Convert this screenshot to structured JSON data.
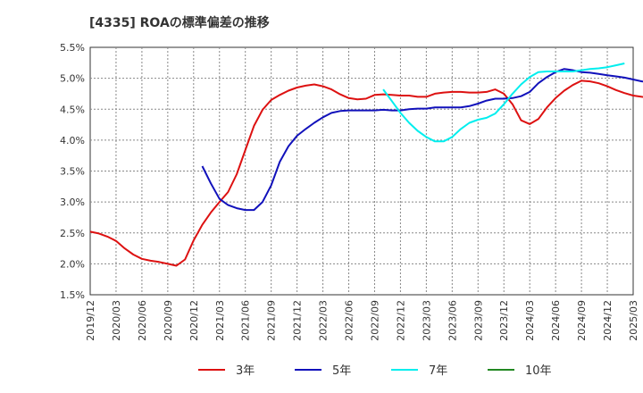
{
  "chart_data": {
    "type": "line",
    "title": "[4335]  ROAの標準偏差の推移",
    "xlabel": "",
    "ylabel": "",
    "ylim": [
      0.015,
      0.055
    ],
    "y_ticks": [
      "1.5%",
      "2.0%",
      "2.5%",
      "3.0%",
      "3.5%",
      "4.0%",
      "4.5%",
      "5.0%",
      "5.5%"
    ],
    "x_ticks": [
      "2019/12",
      "2020/03",
      "2020/06",
      "2020/09",
      "2020/12",
      "2021/03",
      "2021/06",
      "2021/09",
      "2021/12",
      "2022/03",
      "2022/06",
      "2022/09",
      "2022/12",
      "2023/03",
      "2023/06",
      "2023/09",
      "2023/12",
      "2024/03",
      "2024/06",
      "2024/09",
      "2024/12",
      "2025/03"
    ],
    "grid": true,
    "legend_position": "bottom",
    "series": [
      {
        "name": "3年",
        "color": "#dd1111",
        "points": [
          [
            "2019/12",
            0.0252
          ],
          [
            "2020/01",
            0.0249
          ],
          [
            "2020/02",
            0.0244
          ],
          [
            "2020/03",
            0.0237
          ],
          [
            "2020/04",
            0.0225
          ],
          [
            "2020/05",
            0.0215
          ],
          [
            "2020/06",
            0.0208
          ],
          [
            "2020/07",
            0.0205
          ],
          [
            "2020/08",
            0.0203
          ],
          [
            "2020/09",
            0.02
          ],
          [
            "2020/10",
            0.0197
          ],
          [
            "2020/11",
            0.0207
          ],
          [
            "2020/12",
            0.0238
          ],
          [
            "2021/01",
            0.0263
          ],
          [
            "2021/02",
            0.0283
          ],
          [
            "2021/03",
            0.03
          ],
          [
            "2021/04",
            0.0316
          ],
          [
            "2021/05",
            0.0345
          ],
          [
            "2021/06",
            0.0384
          ],
          [
            "2021/07",
            0.0423
          ],
          [
            "2021/08",
            0.0449
          ],
          [
            "2021/09",
            0.0465
          ],
          [
            "2021/10",
            0.0473
          ],
          [
            "2021/11",
            0.048
          ],
          [
            "2021/12",
            0.0485
          ],
          [
            "2022/01",
            0.0488
          ],
          [
            "2022/02",
            0.049
          ],
          [
            "2022/03",
            0.0487
          ],
          [
            "2022/04",
            0.0482
          ],
          [
            "2022/05",
            0.0474
          ],
          [
            "2022/06",
            0.0468
          ],
          [
            "2022/07",
            0.0466
          ],
          [
            "2022/08",
            0.0467
          ],
          [
            "2022/09",
            0.0473
          ],
          [
            "2022/10",
            0.0474
          ],
          [
            "2022/11",
            0.0473
          ],
          [
            "2022/12",
            0.0472
          ],
          [
            "2023/01",
            0.0472
          ],
          [
            "2023/02",
            0.047
          ],
          [
            "2023/03",
            0.047
          ],
          [
            "2023/04",
            0.0475
          ],
          [
            "2023/05",
            0.0477
          ],
          [
            "2023/06",
            0.0478
          ],
          [
            "2023/07",
            0.0478
          ],
          [
            "2023/08",
            0.0477
          ],
          [
            "2023/09",
            0.0477
          ],
          [
            "2023/10",
            0.0478
          ],
          [
            "2023/11",
            0.0482
          ],
          [
            "2023/12",
            0.0475
          ],
          [
            "2024/01",
            0.0458
          ],
          [
            "2024/02",
            0.0432
          ],
          [
            "2024/03",
            0.0426
          ],
          [
            "2024/04",
            0.0434
          ],
          [
            "2024/05",
            0.0453
          ],
          [
            "2024/06",
            0.0468
          ],
          [
            "2024/07",
            0.048
          ],
          [
            "2024/08",
            0.0489
          ],
          [
            "2024/09",
            0.0496
          ],
          [
            "2024/10",
            0.0495
          ],
          [
            "2024/11",
            0.0492
          ],
          [
            "2024/12",
            0.0487
          ],
          [
            "2025/01",
            0.0481
          ],
          [
            "2025/02",
            0.0476
          ],
          [
            "2025/03",
            0.0472
          ],
          [
            "2025/04",
            0.047
          ],
          [
            "2025/05",
            0.0469
          ],
          [
            "2025/06",
            0.0468
          ],
          [
            "2025/07",
            0.0468
          ],
          [
            "2025/08",
            0.0468
          ],
          [
            "2025/09",
            0.047
          ],
          [
            "2025/10",
            0.0472
          ],
          [
            "2025/11",
            0.0472
          ]
        ]
      },
      {
        "name": "5年",
        "color": "#1111bb",
        "points": [
          [
            "2021/01",
            0.0358
          ],
          [
            "2021/02",
            0.033
          ],
          [
            "2021/03",
            0.0305
          ],
          [
            "2021/04",
            0.0295
          ],
          [
            "2021/05",
            0.029
          ],
          [
            "2021/06",
            0.0287
          ],
          [
            "2021/07",
            0.0287
          ],
          [
            "2021/08",
            0.03
          ],
          [
            "2021/09",
            0.0327
          ],
          [
            "2021/10",
            0.0365
          ],
          [
            "2021/11",
            0.039
          ],
          [
            "2021/12",
            0.0407
          ],
          [
            "2022/01",
            0.0418
          ],
          [
            "2022/02",
            0.0428
          ],
          [
            "2022/03",
            0.0437
          ],
          [
            "2022/04",
            0.0444
          ],
          [
            "2022/05",
            0.0447
          ],
          [
            "2022/06",
            0.0448
          ],
          [
            "2022/07",
            0.0448
          ],
          [
            "2022/08",
            0.0448
          ],
          [
            "2022/09",
            0.0448
          ],
          [
            "2022/10",
            0.0449
          ],
          [
            "2022/11",
            0.0448
          ],
          [
            "2022/12",
            0.0448
          ],
          [
            "2023/01",
            0.045
          ],
          [
            "2023/02",
            0.0451
          ],
          [
            "2023/03",
            0.0451
          ],
          [
            "2023/04",
            0.0453
          ],
          [
            "2023/05",
            0.0453
          ],
          [
            "2023/06",
            0.0453
          ],
          [
            "2023/07",
            0.0453
          ],
          [
            "2023/08",
            0.0455
          ],
          [
            "2023/09",
            0.0459
          ],
          [
            "2023/10",
            0.0464
          ],
          [
            "2023/11",
            0.0467
          ],
          [
            "2023/12",
            0.0467
          ],
          [
            "2024/01",
            0.0468
          ],
          [
            "2024/02",
            0.0471
          ],
          [
            "2024/03",
            0.0478
          ],
          [
            "2024/04",
            0.0492
          ],
          [
            "2024/05",
            0.0502
          ],
          [
            "2024/06",
            0.051
          ],
          [
            "2024/07",
            0.0515
          ],
          [
            "2024/08",
            0.0513
          ],
          [
            "2024/09",
            0.051
          ],
          [
            "2024/10",
            0.0509
          ],
          [
            "2024/11",
            0.0507
          ],
          [
            "2024/12",
            0.0505
          ],
          [
            "2025/01",
            0.0503
          ],
          [
            "2025/02",
            0.0501
          ],
          [
            "2025/03",
            0.0498
          ],
          [
            "2025/04",
            0.0495
          ],
          [
            "2025/05",
            0.0493
          ],
          [
            "2025/06",
            0.0492
          ],
          [
            "2025/07",
            0.0492
          ]
        ]
      },
      {
        "name": "7年",
        "color": "#00eeee",
        "points": [
          [
            "2022/10",
            0.0482
          ],
          [
            "2022/11",
            0.0463
          ],
          [
            "2022/12",
            0.0444
          ],
          [
            "2023/01",
            0.0428
          ],
          [
            "2023/02",
            0.0415
          ],
          [
            "2023/03",
            0.0405
          ],
          [
            "2023/04",
            0.0398
          ],
          [
            "2023/05",
            0.0398
          ],
          [
            "2023/06",
            0.0405
          ],
          [
            "2023/07",
            0.0418
          ],
          [
            "2023/08",
            0.0428
          ],
          [
            "2023/09",
            0.0433
          ],
          [
            "2023/10",
            0.0436
          ],
          [
            "2023/11",
            0.0443
          ],
          [
            "2023/12",
            0.0458
          ],
          [
            "2024/01",
            0.0475
          ],
          [
            "2024/02",
            0.049
          ],
          [
            "2024/03",
            0.0502
          ],
          [
            "2024/04",
            0.051
          ],
          [
            "2024/05",
            0.0511
          ],
          [
            "2024/06",
            0.0511
          ],
          [
            "2024/07",
            0.0511
          ],
          [
            "2024/08",
            0.0511
          ],
          [
            "2024/09",
            0.0513
          ],
          [
            "2024/10",
            0.0515
          ],
          [
            "2024/11",
            0.0516
          ],
          [
            "2024/12",
            0.0518
          ],
          [
            "2025/01",
            0.0521
          ],
          [
            "2025/02",
            0.0524
          ]
        ]
      },
      {
        "name": "10年",
        "color": "#228822",
        "points": []
      }
    ]
  }
}
